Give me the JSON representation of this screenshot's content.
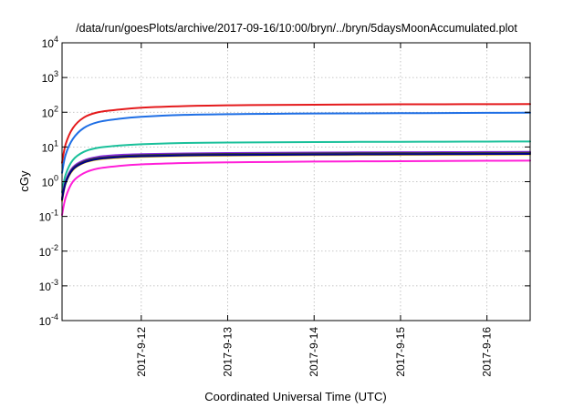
{
  "chart_data": {
    "type": "line",
    "title": "/data/run/goesPlots/archive/2017-09-16/10:00/bryn/../bryn/5daysMoonAccumulated.plot",
    "xlabel": "Coordinated Universal Time (UTC)",
    "ylabel": "cGy",
    "y_scale": "log",
    "ylim": [
      0.0001,
      10000
    ],
    "y_ticks": [
      {
        "base": "10",
        "exp": "-4",
        "value": 0.0001
      },
      {
        "base": "10",
        "exp": "-3",
        "value": 0.001
      },
      {
        "base": "10",
        "exp": "-2",
        "value": 0.01
      },
      {
        "base": "10",
        "exp": "-1",
        "value": 0.1
      },
      {
        "base": "10",
        "exp": "0",
        "value": 1
      },
      {
        "base": "10",
        "exp": "1",
        "value": 10
      },
      {
        "base": "10",
        "exp": "2",
        "value": 100
      },
      {
        "base": "10",
        "exp": "3",
        "value": 1000
      },
      {
        "base": "10",
        "exp": "4",
        "value": 10000
      }
    ],
    "xlim": [
      "2017-09-11 02:00",
      "2017-09-16 12:00"
    ],
    "x_ticks": [
      "2017-9-12",
      "2017-9-13",
      "2017-9-14",
      "2017-9-15",
      "2017-9-16"
    ],
    "grid": true,
    "x": [
      "2017-09-11 02:00",
      "2017-09-11 03:00",
      "2017-09-11 05:00",
      "2017-09-11 08:00",
      "2017-09-11 12:00",
      "2017-09-11 18:00",
      "2017-09-12 00:00",
      "2017-09-12 12:00",
      "2017-09-13 00:00",
      "2017-09-13 12:00",
      "2017-09-14 00:00",
      "2017-09-14 12:00",
      "2017-09-15 00:00",
      "2017-09-15 12:00",
      "2017-09-16 00:00",
      "2017-09-16 12:00"
    ],
    "series": [
      {
        "color": "#e41a1c",
        "values": [
          3.5,
          12,
          35,
          70,
          100,
          120,
          135,
          150,
          158,
          162,
          165,
          167,
          169,
          170,
          171,
          172
        ]
      },
      {
        "color": "#1f6fe5",
        "values": [
          1.8,
          6,
          17,
          35,
          52,
          65,
          74,
          84,
          88,
          90,
          92,
          93,
          94,
          95,
          96,
          97
        ]
      },
      {
        "color": "#19c09a",
        "values": [
          0.5,
          1.6,
          4.2,
          7.2,
          9.5,
          11,
          12,
          13,
          13.4,
          13.6,
          13.8,
          14,
          14.1,
          14.2,
          14.3,
          14.4
        ]
      },
      {
        "color": "#8a2be2",
        "values": [
          0.35,
          1.05,
          2.6,
          4.1,
          5.2,
          5.9,
          6.2,
          6.5,
          6.7,
          6.8,
          6.9,
          7.0,
          7.05,
          7.1,
          7.15,
          7.2
        ]
      },
      {
        "color": "#3a3a3a",
        "values": [
          0.32,
          0.98,
          2.4,
          3.8,
          4.8,
          5.4,
          5.8,
          6.1,
          6.3,
          6.4,
          6.5,
          6.6,
          6.65,
          6.7,
          6.75,
          6.8
        ]
      },
      {
        "color": "#ffd400",
        "values": [
          0.28,
          0.88,
          2.15,
          3.45,
          4.35,
          4.9,
          5.2,
          5.5,
          5.65,
          5.75,
          5.85,
          5.9,
          5.95,
          6.0,
          6.05,
          6.1
        ]
      },
      {
        "color": "#00008b",
        "values": [
          0.3,
          0.92,
          2.25,
          3.55,
          4.5,
          5.1,
          5.4,
          5.7,
          5.85,
          5.95,
          6.05,
          6.1,
          6.15,
          6.2,
          6.25,
          6.3
        ]
      },
      {
        "color": "#ff1fd8",
        "values": [
          0.11,
          0.35,
          1.0,
          1.75,
          2.4,
          2.85,
          3.15,
          3.45,
          3.6,
          3.7,
          3.8,
          3.85,
          3.9,
          3.95,
          4.0,
          4.05
        ]
      }
    ]
  }
}
